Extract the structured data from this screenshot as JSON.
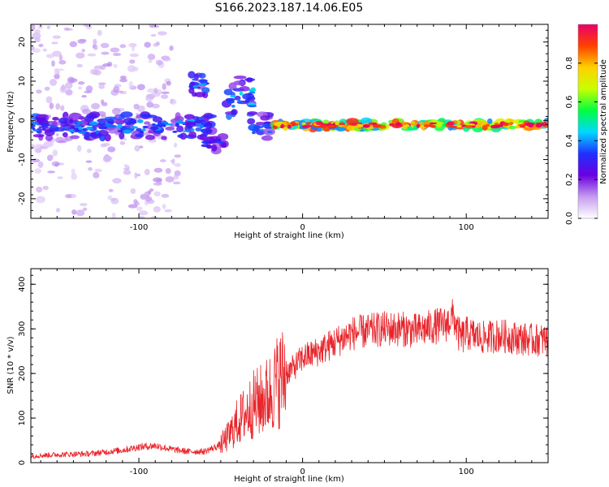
{
  "title": "S166.2023.187.14.06.E05",
  "chart_data": [
    {
      "type": "heatmap",
      "xlabel": "Height of straight line (km)",
      "ylabel": "Frequency (Hz)",
      "xlim": [
        -166,
        150
      ],
      "ylim": [
        -25,
        24.5
      ],
      "x_ticks": [
        -100,
        0,
        100
      ],
      "y_ticks": [
        -20,
        -10,
        0,
        10,
        20
      ],
      "grid": false,
      "colorbar": {
        "label": "Normalized spectral amplitude",
        "range": [
          0,
          1
        ],
        "ticks": [
          0.0,
          0.2,
          0.4,
          0.6,
          0.8
        ],
        "colors": [
          "#ffffff",
          "#c59cf0",
          "#6a00e0",
          "#2030ff",
          "#00d8ff",
          "#00ff40",
          "#c8ff00",
          "#ffd000",
          "#ff4000",
          "#e8006a"
        ]
      },
      "features": [
        {
          "x_range": [
            -166,
            -55
          ],
          "center_hz": -1.5,
          "half_width_hz": 3,
          "amplitude": 0.35
        },
        {
          "x_range": [
            -70,
            -58
          ],
          "center_hz": 9,
          "half_width_hz": 3,
          "amplitude": 0.35
        },
        {
          "x_range": [
            -60,
            -48
          ],
          "center_hz": -6,
          "half_width_hz": 2,
          "amplitude": 0.3
        },
        {
          "x_range": [
            -48,
            -30
          ],
          "center_hz": 6,
          "half_width_hz": 5,
          "amplitude": 0.4
        },
        {
          "x_range": [
            -32,
            -20
          ],
          "center_hz": -2,
          "half_width_hz": 4,
          "amplitude": 0.35
        },
        {
          "x_range": [
            -18,
            150
          ],
          "center_hz": -1.2,
          "half_width_hz": 1,
          "amplitude": 0.9
        }
      ]
    },
    {
      "type": "line",
      "xlabel": "Height of straight line (km)",
      "ylabel": "SNR (10 * v/v)",
      "xlim": [
        -166,
        150
      ],
      "ylim": [
        0,
        435
      ],
      "x_ticks": [
        -100,
        0,
        100
      ],
      "y_ticks": [
        0,
        100,
        200,
        300,
        400
      ],
      "grid": false,
      "series": [
        {
          "color": "#e8242a",
          "x": [
            -166,
            -150,
            -130,
            -110,
            -100,
            -90,
            -80,
            -70,
            -60,
            -50,
            -45,
            -40,
            -35,
            -30,
            -25,
            -20,
            -15,
            -10,
            -5,
            0,
            10,
            20,
            25,
            30,
            40,
            50,
            60,
            70,
            80,
            88,
            92,
            95,
            97,
            100,
            110,
            120,
            130,
            140,
            150
          ],
          "y": [
            15,
            18,
            20,
            28,
            35,
            38,
            30,
            25,
            25,
            40,
            60,
            90,
            110,
            130,
            140,
            155,
            185,
            200,
            215,
            235,
            250,
            270,
            280,
            290,
            295,
            300,
            300,
            295,
            305,
            310,
            330,
            290,
            280,
            290,
            280,
            285,
            280,
            275,
            275
          ]
        }
      ]
    }
  ]
}
